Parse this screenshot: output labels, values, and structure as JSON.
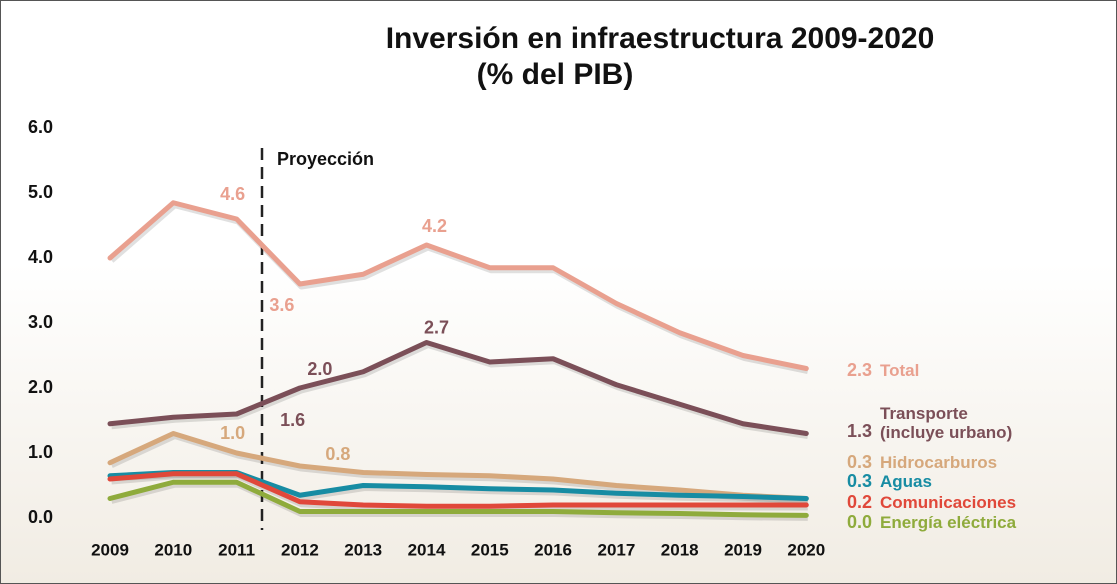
{
  "chart_data": {
    "type": "line",
    "title": "Inversión en infraestructura 2009-2020",
    "subtitle": "(% del PIB)",
    "annotation": "Proyección",
    "categories": [
      "2009",
      "2010",
      "2011",
      "2012",
      "2013",
      "2014",
      "2015",
      "2016",
      "2017",
      "2018",
      "2019",
      "2020"
    ],
    "ylim": [
      0,
      6
    ],
    "yticks": [
      {
        "value": 0,
        "label": "0.0"
      },
      {
        "value": 1,
        "label": "1.0"
      },
      {
        "value": 2,
        "label": "2.0"
      },
      {
        "value": 3,
        "label": "3.0"
      },
      {
        "value": 4,
        "label": "4.0"
      },
      {
        "value": 5,
        "label": "5.0"
      },
      {
        "value": 6,
        "label": "6.0"
      }
    ],
    "grid": false,
    "series": [
      {
        "name": "Total",
        "color": "#e9a08f",
        "values": [
          4.0,
          4.85,
          4.6,
          3.6,
          3.75,
          4.2,
          3.85,
          3.85,
          3.3,
          2.85,
          2.5,
          2.3
        ],
        "value_labels": [
          null,
          null,
          "4.6",
          "3.6",
          null,
          "4.2",
          null,
          null,
          null,
          null,
          null,
          "2.3"
        ]
      },
      {
        "name": "Transporte (incluye urbano)",
        "color": "#7b4f58",
        "values": [
          1.45,
          1.55,
          1.6,
          2.0,
          2.25,
          2.7,
          2.4,
          2.45,
          2.05,
          1.75,
          1.45,
          1.3
        ],
        "value_labels": [
          null,
          null,
          "1.6",
          "2.0",
          null,
          "2.7",
          null,
          null,
          null,
          null,
          null,
          "1.3"
        ]
      },
      {
        "name": "Hidrocarburos",
        "color": "#d6a87c",
        "values": [
          0.85,
          1.3,
          1.0,
          0.8,
          0.7,
          0.67,
          0.65,
          0.6,
          0.5,
          0.43,
          0.35,
          0.3
        ],
        "value_labels": [
          null,
          null,
          "1.0",
          "0.8",
          null,
          null,
          null,
          null,
          null,
          null,
          null,
          "0.3"
        ]
      },
      {
        "name": "Aguas",
        "color": "#178ca3",
        "values": [
          0.65,
          0.7,
          0.7,
          0.35,
          0.5,
          0.48,
          0.45,
          0.43,
          0.38,
          0.35,
          0.33,
          0.3
        ],
        "value_labels": [
          null,
          null,
          null,
          null,
          null,
          null,
          null,
          null,
          null,
          null,
          null,
          "0.3"
        ]
      },
      {
        "name": "Comunicaciones",
        "color": "#e0483a",
        "values": [
          0.6,
          0.68,
          0.68,
          0.25,
          0.2,
          0.18,
          0.18,
          0.2,
          0.2,
          0.2,
          0.2,
          0.2
        ],
        "value_labels": [
          null,
          null,
          null,
          null,
          null,
          null,
          null,
          null,
          null,
          null,
          null,
          "0.2"
        ]
      },
      {
        "name": "Energía eléctrica",
        "color": "#8fab3c",
        "values": [
          0.3,
          0.55,
          0.55,
          0.1,
          0.1,
          0.1,
          0.1,
          0.1,
          0.08,
          0.07,
          0.05,
          0.04
        ],
        "value_labels": [
          null,
          null,
          null,
          null,
          null,
          null,
          null,
          null,
          null,
          null,
          null,
          "0.0"
        ]
      }
    ]
  }
}
